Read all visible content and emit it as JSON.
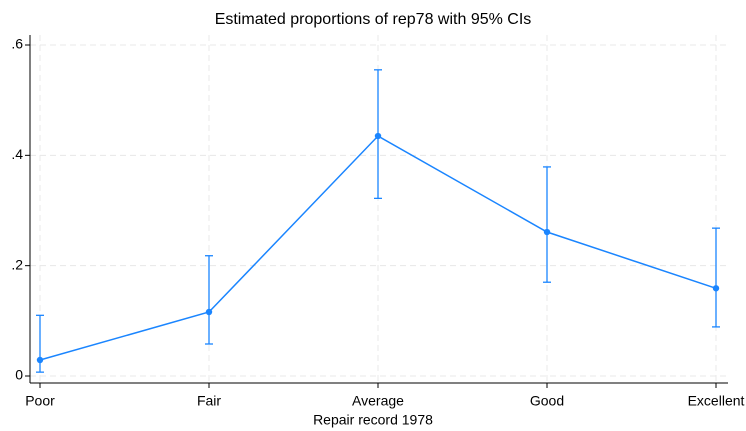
{
  "chart_data": {
    "type": "line",
    "title": "Estimated proportions of rep78 with 95% CIs",
    "x_label": "Repair record 1978",
    "categories": [
      "Poor",
      "Fair",
      "Average",
      "Good",
      "Excellent"
    ],
    "series": [
      {
        "color": "#1a85ff",
        "values": [
          0.029,
          0.116,
          0.435,
          0.261,
          0.159
        ],
        "ci_lower": [
          0.007,
          0.058,
          0.322,
          0.17,
          0.089
        ],
        "ci_upper": [
          0.11,
          0.218,
          0.555,
          0.379,
          0.268
        ]
      }
    ],
    "ylim": [
      0,
      0.6
    ],
    "yticks": [
      0,
      {
        "value": 0.2,
        "label": ".2"
      },
      {
        "value": 0.4,
        "label": ".4"
      },
      {
        "value": 0.6,
        "label": ".6"
      }
    ],
    "grid": true
  }
}
